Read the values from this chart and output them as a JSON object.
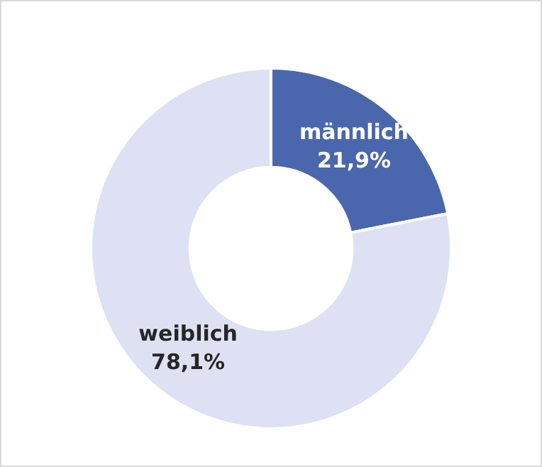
{
  "chart_data": {
    "type": "donut",
    "categories": [
      "männlich",
      "weiblich"
    ],
    "values": [
      21.9,
      78.1
    ],
    "colors": [
      "#4a67ad",
      "#dde1f3"
    ],
    "value_labels": [
      "21,9%",
      "78,1%"
    ],
    "legend": false
  }
}
